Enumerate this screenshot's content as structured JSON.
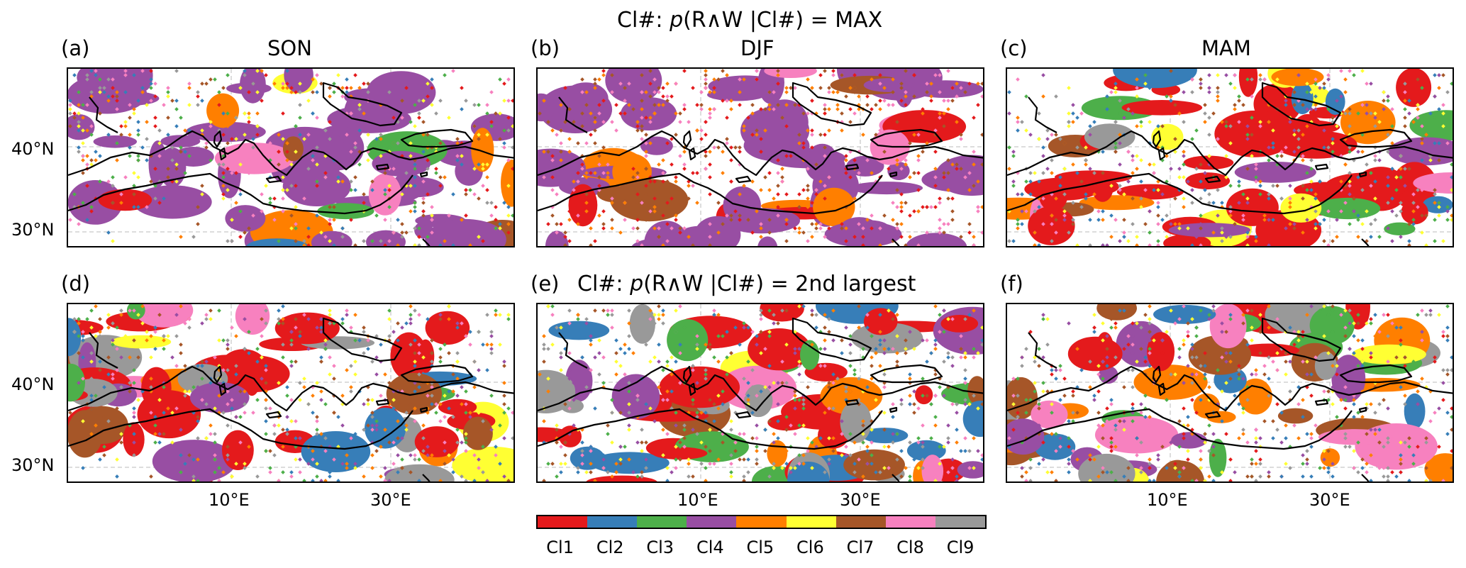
{
  "suptitle": {
    "prefix": "Cl#: ",
    "p": "p",
    "rest": "(R∧W |Cl#) = MAX"
  },
  "row2_title": {
    "prefix": "Cl#: ",
    "p": "p",
    "rest": "(R∧W |Cl#) = 2nd largest"
  },
  "panels": [
    {
      "label": "(a)",
      "season": "SON",
      "dominant": "Cl4"
    },
    {
      "label": "(b)",
      "season": "DJF",
      "dominant": "Cl4"
    },
    {
      "label": "(c)",
      "season": "MAM",
      "dominant": "Cl1"
    },
    {
      "label": "(d)",
      "season": "",
      "dominant": "Cl1"
    },
    {
      "label": "(e)",
      "season": "",
      "dominant": "Cl1"
    },
    {
      "label": "(f)",
      "season": "",
      "dominant": "mixed"
    }
  ],
  "axes": {
    "lat_ticks": [
      "40°N",
      "30°N"
    ],
    "lon_ticks": [
      "10°E",
      "30°E"
    ]
  },
  "colorbar": {
    "labels": [
      "Cl1",
      "Cl2",
      "Cl3",
      "Cl4",
      "Cl5",
      "Cl6",
      "Cl7",
      "Cl8",
      "Cl9"
    ],
    "colors": [
      "#e41a1c",
      "#377eb8",
      "#4daf4a",
      "#984ea3",
      "#ff7f00",
      "#ffff33",
      "#a65628",
      "#f781bf",
      "#999999"
    ]
  }
}
